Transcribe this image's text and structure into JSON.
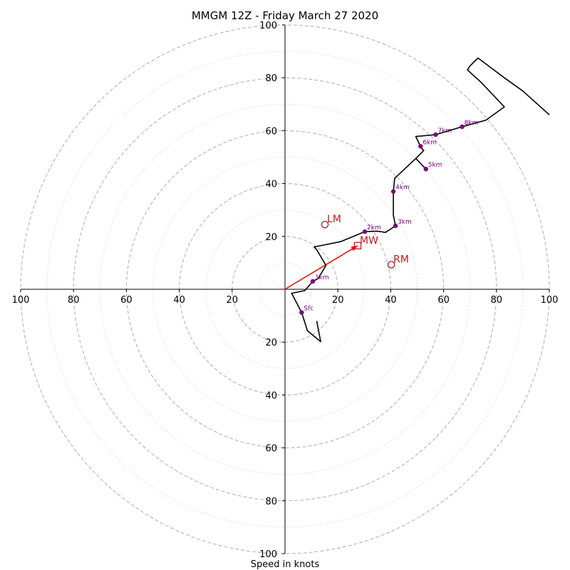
{
  "chart_data": {
    "type": "hodograph",
    "title": "MMGM 12Z - Friday March 27 2020",
    "xlabel": "Speed in knots",
    "xlim": [
      -100,
      100
    ],
    "ylim": [
      -100,
      100
    ],
    "grid": true,
    "rings_dashed": [
      20,
      40,
      60,
      80,
      100
    ],
    "rings_dotted": [
      10,
      30,
      50,
      70,
      90
    ],
    "x_tick_labels": [
      "100",
      "80",
      "60",
      "40",
      "20",
      "20",
      "40",
      "60",
      "80",
      "100"
    ],
    "y_tick_labels_up": [
      "20",
      "40",
      "60",
      "80",
      "100"
    ],
    "y_tick_labels_down": [
      "20",
      "40",
      "60",
      "80",
      "100"
    ],
    "trace": {
      "color": "#000000",
      "points": [
        [
          100,
          66
        ],
        [
          90,
          75
        ],
        [
          83,
          80
        ],
        [
          79,
          83
        ],
        [
          73,
          87.5
        ],
        [
          70,
          84.5
        ],
        [
          69,
          83
        ],
        [
          74,
          78.5
        ],
        [
          83,
          69
        ],
        [
          76,
          64
        ],
        [
          67,
          61.5
        ],
        [
          57,
          58.5
        ],
        [
          49.5,
          57.8
        ],
        [
          51.5,
          53.5
        ],
        [
          52.5,
          52.5
        ],
        [
          49.5,
          49.5
        ],
        [
          53.3,
          45.5
        ],
        [
          49.5,
          49.5
        ],
        [
          41.5,
          42
        ],
        [
          41,
          37
        ],
        [
          41,
          28
        ],
        [
          41.8,
          24
        ],
        [
          38,
          21.5
        ],
        [
          35,
          22
        ],
        [
          30.2,
          21.8
        ],
        [
          21,
          18
        ],
        [
          11,
          16
        ],
        [
          12,
          15
        ],
        [
          15.5,
          9
        ],
        [
          12.5,
          4
        ],
        [
          10.5,
          3
        ],
        [
          7.5,
          -0.5
        ],
        [
          2.5,
          -1.5
        ],
        [
          6.3,
          -8.8
        ],
        [
          8.5,
          -15.7
        ],
        [
          13.5,
          -19.8
        ],
        [
          12,
          -12
        ]
      ]
    },
    "height_markers": {
      "color": "#7a0580",
      "points": [
        {
          "label": "Sfc",
          "u": 6.3,
          "v": -8.8
        },
        {
          "label": "1km",
          "u": 10.5,
          "v": 3
        },
        {
          "label": "2km",
          "u": 30.2,
          "v": 21.8
        },
        {
          "label": "3km",
          "u": 41.8,
          "v": 24
        },
        {
          "label": "4km",
          "u": 41,
          "v": 37
        },
        {
          "label": "5km",
          "u": 53.3,
          "v": 45.5
        },
        {
          "label": "6km",
          "u": 51.3,
          "v": 54.1
        },
        {
          "label": "7km",
          "u": 57,
          "v": 58.5
        },
        {
          "label": "8km",
          "u": 67,
          "v": 61.5
        }
      ]
    },
    "motion_markers": {
      "color": "#c0181b",
      "vector_color": "#e8130c",
      "mean_wind": {
        "label": "MW",
        "u": 27.5,
        "v": 16.5
      },
      "left_mover": {
        "label": "LM",
        "u": 15.1,
        "v": 24.5
      },
      "right_mover": {
        "label": "RM",
        "u": 40.2,
        "v": 9.3
      }
    }
  }
}
